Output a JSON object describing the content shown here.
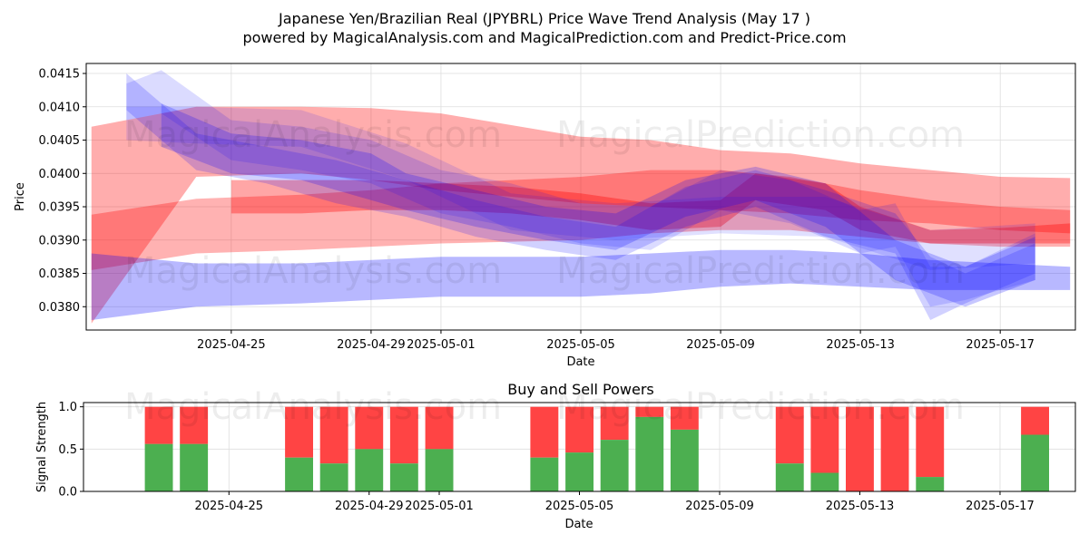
{
  "title_line1": "Japanese Yen/Brazilian Real (JPYBRL) Price Wave Trend Analysis (May 17 )",
  "title_line2": "powered by MagicalAnalysis.com and MagicalPrediction.com and Predict-Price.com",
  "watermarks": [
    "MagicalAnalysis.com",
    "MagicalPrediction.com"
  ],
  "colors": {
    "red": "#ff0000",
    "blue": "#0000ff",
    "buy": "#4caf50",
    "sell": "#ff4444",
    "grid": "#dddddd"
  },
  "chart_data": [
    {
      "type": "area",
      "title": "",
      "xlabel": "Date",
      "ylabel": "Price",
      "x_ticks": [
        "2025-04-25",
        "2025-04-29",
        "2025-05-01",
        "2025-05-05",
        "2025-05-09",
        "2025-05-13",
        "2025-05-17"
      ],
      "y_ticks": [
        "0.0380",
        "0.0385",
        "0.0390",
        "0.0395",
        "0.0400",
        "0.0405",
        "0.0410",
        "0.0415"
      ],
      "ylim": [
        0.03765,
        0.04165
      ],
      "xlim_days_from_2025_04_21": [
        -0.15,
        28.15
      ],
      "bands": [
        {
          "color": "red",
          "opacity": 0.32,
          "x": [
            0,
            3,
            6,
            8,
            10,
            14,
            16,
            18,
            20,
            22,
            24,
            26,
            28
          ],
          "upper": [
            0.0407,
            0.041,
            0.041,
            0.04098,
            0.0409,
            0.04055,
            0.0405,
            0.04035,
            0.0403,
            0.04015,
            0.04005,
            0.03995,
            0.03993
          ],
          "lower": [
            0.03775,
            0.03995,
            0.04,
            0.0399,
            0.03975,
            0.03955,
            0.0395,
            0.03945,
            0.0394,
            0.0393,
            0.03925,
            0.03915,
            0.0391
          ]
        },
        {
          "color": "red",
          "opacity": 0.3,
          "x": [
            0,
            3,
            6,
            8,
            10,
            14,
            16,
            18,
            20,
            22,
            24,
            26,
            28
          ],
          "upper": [
            0.03938,
            0.03962,
            0.03968,
            0.03975,
            0.03985,
            0.03995,
            0.04005,
            0.04005,
            0.03995,
            0.03975,
            0.0396,
            0.0395,
            0.03945
          ],
          "lower": [
            0.03855,
            0.0388,
            0.03885,
            0.0389,
            0.03895,
            0.039,
            0.0391,
            0.03915,
            0.03915,
            0.03905,
            0.03895,
            0.0389,
            0.0389
          ]
        },
        {
          "color": "red",
          "opacity": 0.35,
          "x": [
            4,
            6,
            8,
            10,
            12,
            14,
            16,
            18,
            19,
            21,
            22,
            24,
            26,
            28
          ],
          "upper": [
            0.0399,
            0.0399,
            0.0399,
            0.03985,
            0.0398,
            0.0397,
            0.03955,
            0.0396,
            0.04,
            0.03985,
            0.0395,
            0.03915,
            0.03918,
            0.03925
          ],
          "lower": [
            0.0394,
            0.0394,
            0.03945,
            0.03945,
            0.0394,
            0.0393,
            0.03915,
            0.0392,
            0.0396,
            0.03945,
            0.03915,
            0.03895,
            0.03895,
            0.03895
          ]
        },
        {
          "color": "blue",
          "opacity": 0.28,
          "x": [
            0,
            3,
            6,
            8,
            10,
            14,
            16,
            18,
            20,
            22,
            24,
            26,
            28
          ],
          "upper": [
            0.0388,
            0.03865,
            0.03865,
            0.0387,
            0.03875,
            0.03875,
            0.0388,
            0.03885,
            0.03885,
            0.0388,
            0.0387,
            0.03865,
            0.0386
          ],
          "lower": [
            0.0378,
            0.038,
            0.03805,
            0.0381,
            0.03815,
            0.03815,
            0.0382,
            0.0383,
            0.03835,
            0.0383,
            0.03825,
            0.03825,
            0.03825
          ]
        },
        {
          "color": "blue",
          "opacity": 0.22,
          "x": [
            2,
            4,
            6,
            8,
            9,
            11,
            13,
            15,
            17,
            19,
            21,
            23,
            25,
            27
          ],
          "upper": [
            0.04105,
            0.0406,
            0.0405,
            0.0403,
            0.04,
            0.03975,
            0.0395,
            0.0394,
            0.0399,
            0.0401,
            0.03985,
            0.039,
            0.0386,
            0.03905
          ],
          "lower": [
            0.0404,
            0.04,
            0.0399,
            0.0396,
            0.03945,
            0.0392,
            0.039,
            0.03885,
            0.03935,
            0.0396,
            0.0392,
            0.0384,
            0.038,
            0.0384
          ]
        },
        {
          "color": "blue",
          "opacity": 0.18,
          "x": [
            1,
            3,
            5,
            7,
            9,
            11,
            13,
            15,
            17,
            19,
            21,
            23,
            24,
            25,
            27
          ],
          "upper": [
            0.0415,
            0.0406,
            0.0404,
            0.0402,
            0.0399,
            0.0396,
            0.03935,
            0.0392,
            0.0398,
            0.04005,
            0.03975,
            0.0394,
            0.03875,
            0.0385,
            0.03895
          ],
          "lower": [
            0.04095,
            0.04005,
            0.03985,
            0.03955,
            0.03935,
            0.03905,
            0.03885,
            0.0387,
            0.0392,
            0.0395,
            0.03905,
            0.0388,
            0.0378,
            0.03805,
            0.0385
          ]
        },
        {
          "color": "blue",
          "opacity": 0.14,
          "x": [
            1,
            2,
            4,
            6,
            8,
            10,
            12,
            14,
            16,
            18,
            20,
            22,
            23,
            24,
            25,
            27
          ],
          "upper": [
            0.04135,
            0.04155,
            0.0408,
            0.0407,
            0.0405,
            0.04005,
            0.03985,
            0.03955,
            0.0395,
            0.04005,
            0.0399,
            0.03945,
            0.03955,
            0.0386,
            0.0386,
            0.0391
          ],
          "lower": [
            0.0408,
            0.0409,
            0.0402,
            0.04005,
            0.03985,
            0.0394,
            0.0392,
            0.03895,
            0.03885,
            0.03945,
            0.03925,
            0.0388,
            0.0389,
            0.038,
            0.0381,
            0.0384
          ]
        },
        {
          "color": "blue",
          "opacity": 0.12,
          "x": [
            1,
            3,
            6,
            9,
            12,
            15,
            18,
            21,
            24,
            27
          ],
          "upper": [
            0.041,
            0.041,
            0.04095,
            0.04045,
            0.0397,
            0.03955,
            0.03965,
            0.03965,
            0.03915,
            0.03925
          ],
          "lower": [
            0.0405,
            0.04045,
            0.0404,
            0.0399,
            0.03915,
            0.039,
            0.0391,
            0.03905,
            0.03855,
            0.03865
          ]
        }
      ]
    },
    {
      "type": "bar",
      "title": "Buy and Sell Powers",
      "xlabel": "Date",
      "ylabel": "Signal Strength",
      "x_ticks": [
        "2025-04-25",
        "2025-04-29",
        "2025-05-01",
        "2025-05-05",
        "2025-05-09",
        "2025-05-13",
        "2025-05-17"
      ],
      "y_ticks": [
        "0.0",
        "0.5",
        "1.0"
      ],
      "ylim": [
        0,
        1.05
      ],
      "xlim_days_from_2025_04_21": [
        -0.15,
        28.15
      ],
      "bars": [
        {
          "day": 2,
          "buy": 0.56
        },
        {
          "day": 3,
          "buy": 0.56
        },
        {
          "day": 6,
          "buy": 0.4
        },
        {
          "day": 7,
          "buy": 0.33
        },
        {
          "day": 8,
          "buy": 0.5
        },
        {
          "day": 9,
          "buy": 0.33
        },
        {
          "day": 10,
          "buy": 0.5
        },
        {
          "day": 13,
          "buy": 0.4
        },
        {
          "day": 14,
          "buy": 0.46
        },
        {
          "day": 15,
          "buy": 0.61
        },
        {
          "day": 16,
          "buy": 0.88
        },
        {
          "day": 17,
          "buy": 0.73
        },
        {
          "day": 20,
          "buy": 0.33
        },
        {
          "day": 21,
          "buy": 0.22
        },
        {
          "day": 22,
          "buy": 0.0
        },
        {
          "day": 23,
          "buy": 0.0
        },
        {
          "day": 24,
          "buy": 0.17
        },
        {
          "day": 27,
          "buy": 0.67
        }
      ]
    }
  ]
}
